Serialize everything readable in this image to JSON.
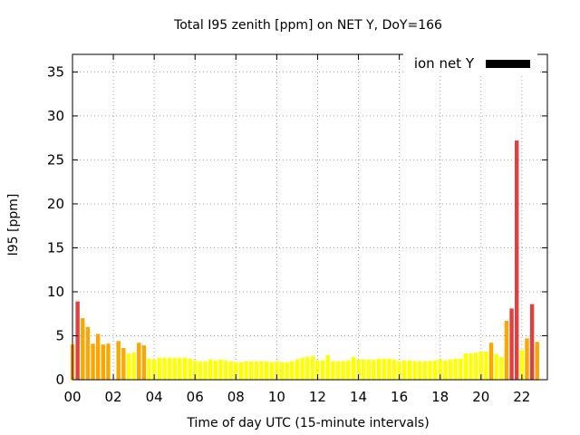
{
  "chart_data": {
    "type": "bar",
    "title": "Total I95 zenith [ppm] on NET Y, DoY=166",
    "xlabel": "Time of day UTC (15-minute intervals)",
    "ylabel": "I95 [ppm]",
    "xlim": [
      0,
      23.25
    ],
    "ylim": [
      0,
      37
    ],
    "x_ticks": [
      0,
      2,
      4,
      6,
      8,
      10,
      12,
      14,
      16,
      18,
      20,
      22
    ],
    "x_tick_labels": [
      "00",
      "02",
      "04",
      "06",
      "08",
      "10",
      "12",
      "14",
      "16",
      "18",
      "20",
      "22"
    ],
    "y_ticks": [
      0,
      5,
      10,
      15,
      20,
      25,
      30,
      35
    ],
    "y_tick_labels": [
      "0",
      "5",
      "10",
      "15",
      "20",
      "25",
      "30",
      "35"
    ],
    "grid": true,
    "legend": {
      "label": "ion net Y",
      "color": "#000000",
      "position": "top-right"
    },
    "bar_interval_hours": 0.25,
    "color_scale": [
      {
        "min": 0,
        "color": "#ffff00"
      },
      {
        "min": 3.5,
        "color": "#ffa500"
      },
      {
        "min": 7.5,
        "color": "#e04040"
      }
    ],
    "values": [
      4.0,
      8.9,
      7.0,
      6.0,
      4.1,
      5.2,
      4.0,
      4.1,
      0,
      4.4,
      3.6,
      3.0,
      3.1,
      4.2,
      3.9,
      2.4,
      2.3,
      2.5,
      2.5,
      2.5,
      2.5,
      2.5,
      2.5,
      2.4,
      2.2,
      2.1,
      2.1,
      2.3,
      2.2,
      2.3,
      2.2,
      2.1,
      2.0,
      2.0,
      2.1,
      2.1,
      2.1,
      2.1,
      2.1,
      2.0,
      2.1,
      2.0,
      2.0,
      2.1,
      2.3,
      2.5,
      2.6,
      2.7,
      2.2,
      2.2,
      2.8,
      2.1,
      2.1,
      2.1,
      2.2,
      2.6,
      2.3,
      2.3,
      2.3,
      2.3,
      2.4,
      2.4,
      2.4,
      2.3,
      2.1,
      2.2,
      2.2,
      2.1,
      2.1,
      2.1,
      2.1,
      2.2,
      2.3,
      2.2,
      2.3,
      2.4,
      2.4,
      3.0,
      3.0,
      3.1,
      3.2,
      3.2,
      4.2,
      2.9,
      2.6,
      6.7,
      8.1,
      27.2,
      3.4,
      4.7,
      8.6,
      4.3
    ]
  }
}
